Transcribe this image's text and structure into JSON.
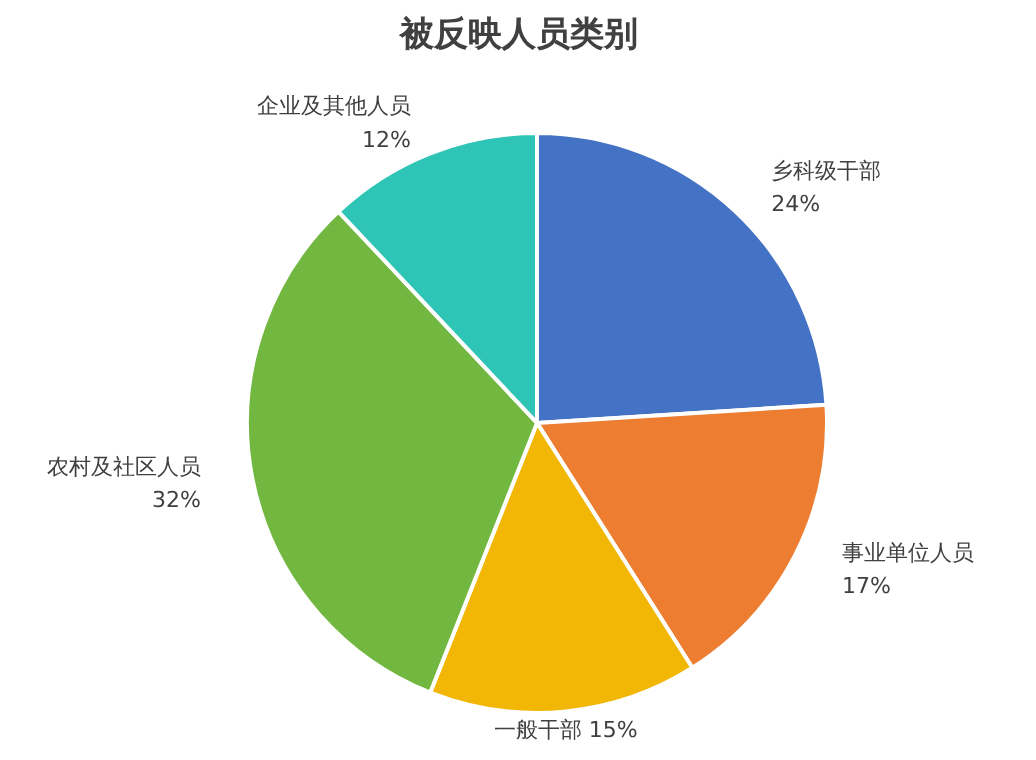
{
  "chart_data": {
    "type": "pie",
    "title": "被反映人员类别",
    "categories": [
      "乡科级干部",
      "事业单位人员",
      "一般干部",
      "农村及社区人员",
      "企业及其他人员"
    ],
    "values": [
      24,
      17,
      15,
      32,
      12
    ],
    "value_labels": [
      "24%",
      "17%",
      "15%",
      "32%",
      "12%"
    ],
    "colors": [
      "#4472c4",
      "#ed7d31",
      "#f2b705",
      "#72b740",
      "#2ec4b6"
    ]
  }
}
